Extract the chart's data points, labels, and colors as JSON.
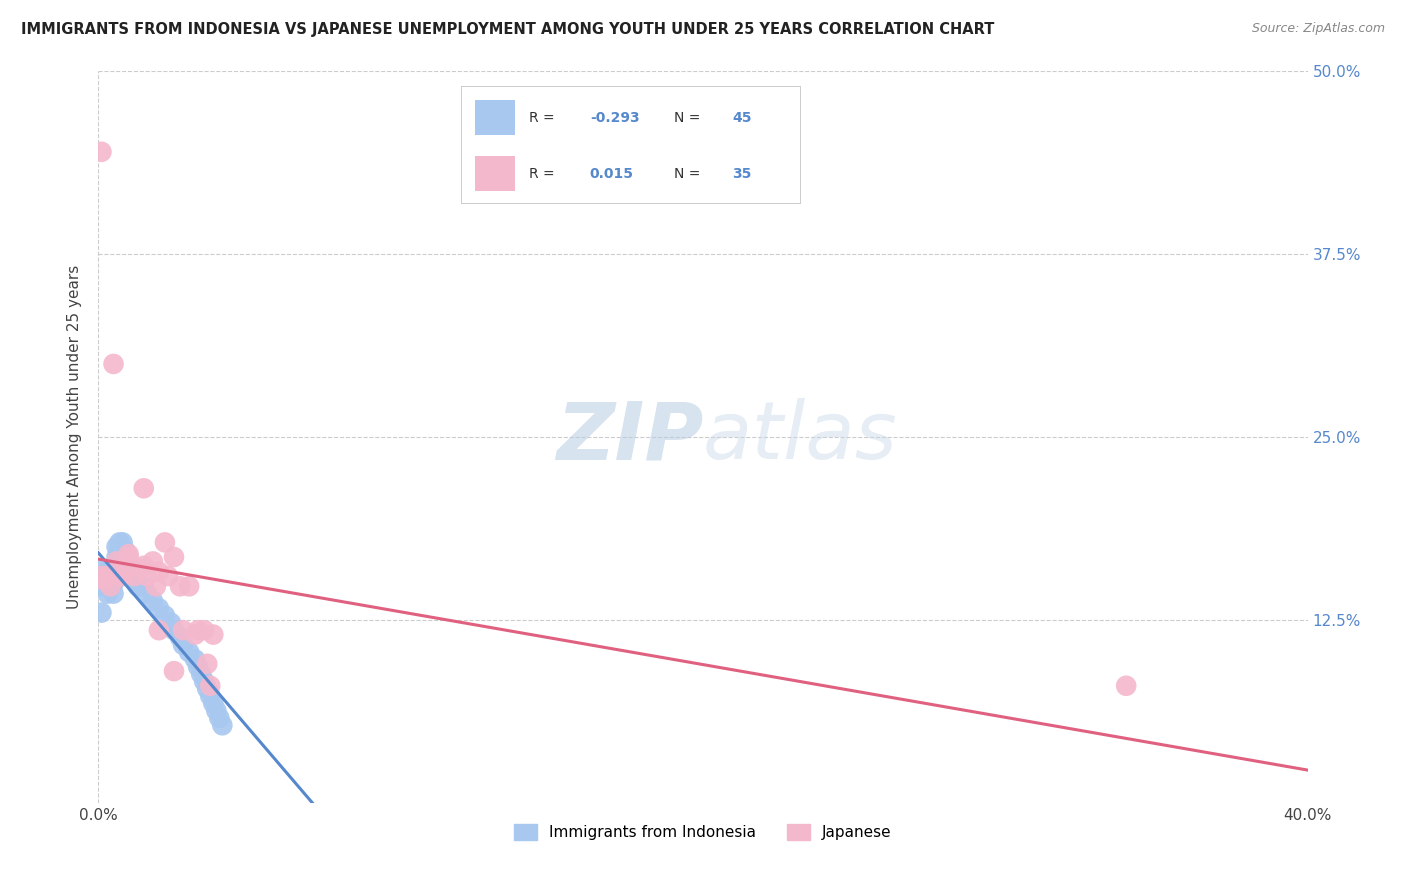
{
  "title": "IMMIGRANTS FROM INDONESIA VS JAPANESE UNEMPLOYMENT AMONG YOUTH UNDER 25 YEARS CORRELATION CHART",
  "source": "Source: ZipAtlas.com",
  "ylabel": "Unemployment Among Youth under 25 years",
  "xlim": [
    0,
    0.4
  ],
  "ylim": [
    0,
    0.5
  ],
  "blue_color": "#a8c8f0",
  "pink_color": "#f4b8cc",
  "blue_line_color": "#5588cc",
  "pink_line_color": "#e06080",
  "watermark_zip": "ZIP",
  "watermark_atlas": "atlas",
  "bg_color": "#ffffff",
  "grid_color": "#cccccc",
  "indonesia_x": [
    0.001,
    0.001,
    0.002,
    0.002,
    0.002,
    0.003,
    0.003,
    0.003,
    0.003,
    0.004,
    0.004,
    0.004,
    0.005,
    0.005,
    0.005,
    0.006,
    0.006,
    0.007,
    0.007,
    0.008,
    0.009,
    0.01,
    0.011,
    0.012,
    0.013,
    0.015,
    0.016,
    0.018,
    0.02,
    0.022,
    0.024,
    0.025,
    0.027,
    0.028,
    0.03,
    0.032,
    0.033,
    0.034,
    0.035,
    0.036,
    0.037,
    0.038,
    0.039,
    0.04,
    0.041
  ],
  "indonesia_y": [
    0.155,
    0.13,
    0.16,
    0.155,
    0.148,
    0.158,
    0.152,
    0.148,
    0.143,
    0.16,
    0.155,
    0.148,
    0.155,
    0.15,
    0.143,
    0.175,
    0.168,
    0.178,
    0.172,
    0.178,
    0.172,
    0.163,
    0.158,
    0.152,
    0.148,
    0.148,
    0.143,
    0.138,
    0.133,
    0.128,
    0.123,
    0.118,
    0.113,
    0.108,
    0.103,
    0.098,
    0.093,
    0.088,
    0.083,
    0.078,
    0.073,
    0.068,
    0.063,
    0.058,
    0.053
  ],
  "japanese_x": [
    0.001,
    0.001,
    0.002,
    0.003,
    0.004,
    0.005,
    0.006,
    0.007,
    0.008,
    0.01,
    0.012,
    0.014,
    0.015,
    0.016,
    0.018,
    0.019,
    0.02,
    0.022,
    0.023,
    0.025,
    0.027,
    0.028,
    0.03,
    0.032,
    0.033,
    0.035,
    0.036,
    0.037,
    0.038,
    0.34,
    0.008,
    0.01,
    0.015,
    0.02,
    0.025
  ],
  "japanese_y": [
    0.445,
    0.155,
    0.152,
    0.155,
    0.148,
    0.3,
    0.165,
    0.155,
    0.16,
    0.168,
    0.155,
    0.16,
    0.215,
    0.155,
    0.165,
    0.148,
    0.158,
    0.178,
    0.155,
    0.168,
    0.148,
    0.118,
    0.148,
    0.115,
    0.118,
    0.118,
    0.095,
    0.08,
    0.115,
    0.08,
    0.155,
    0.17,
    0.162,
    0.118,
    0.09
  ]
}
